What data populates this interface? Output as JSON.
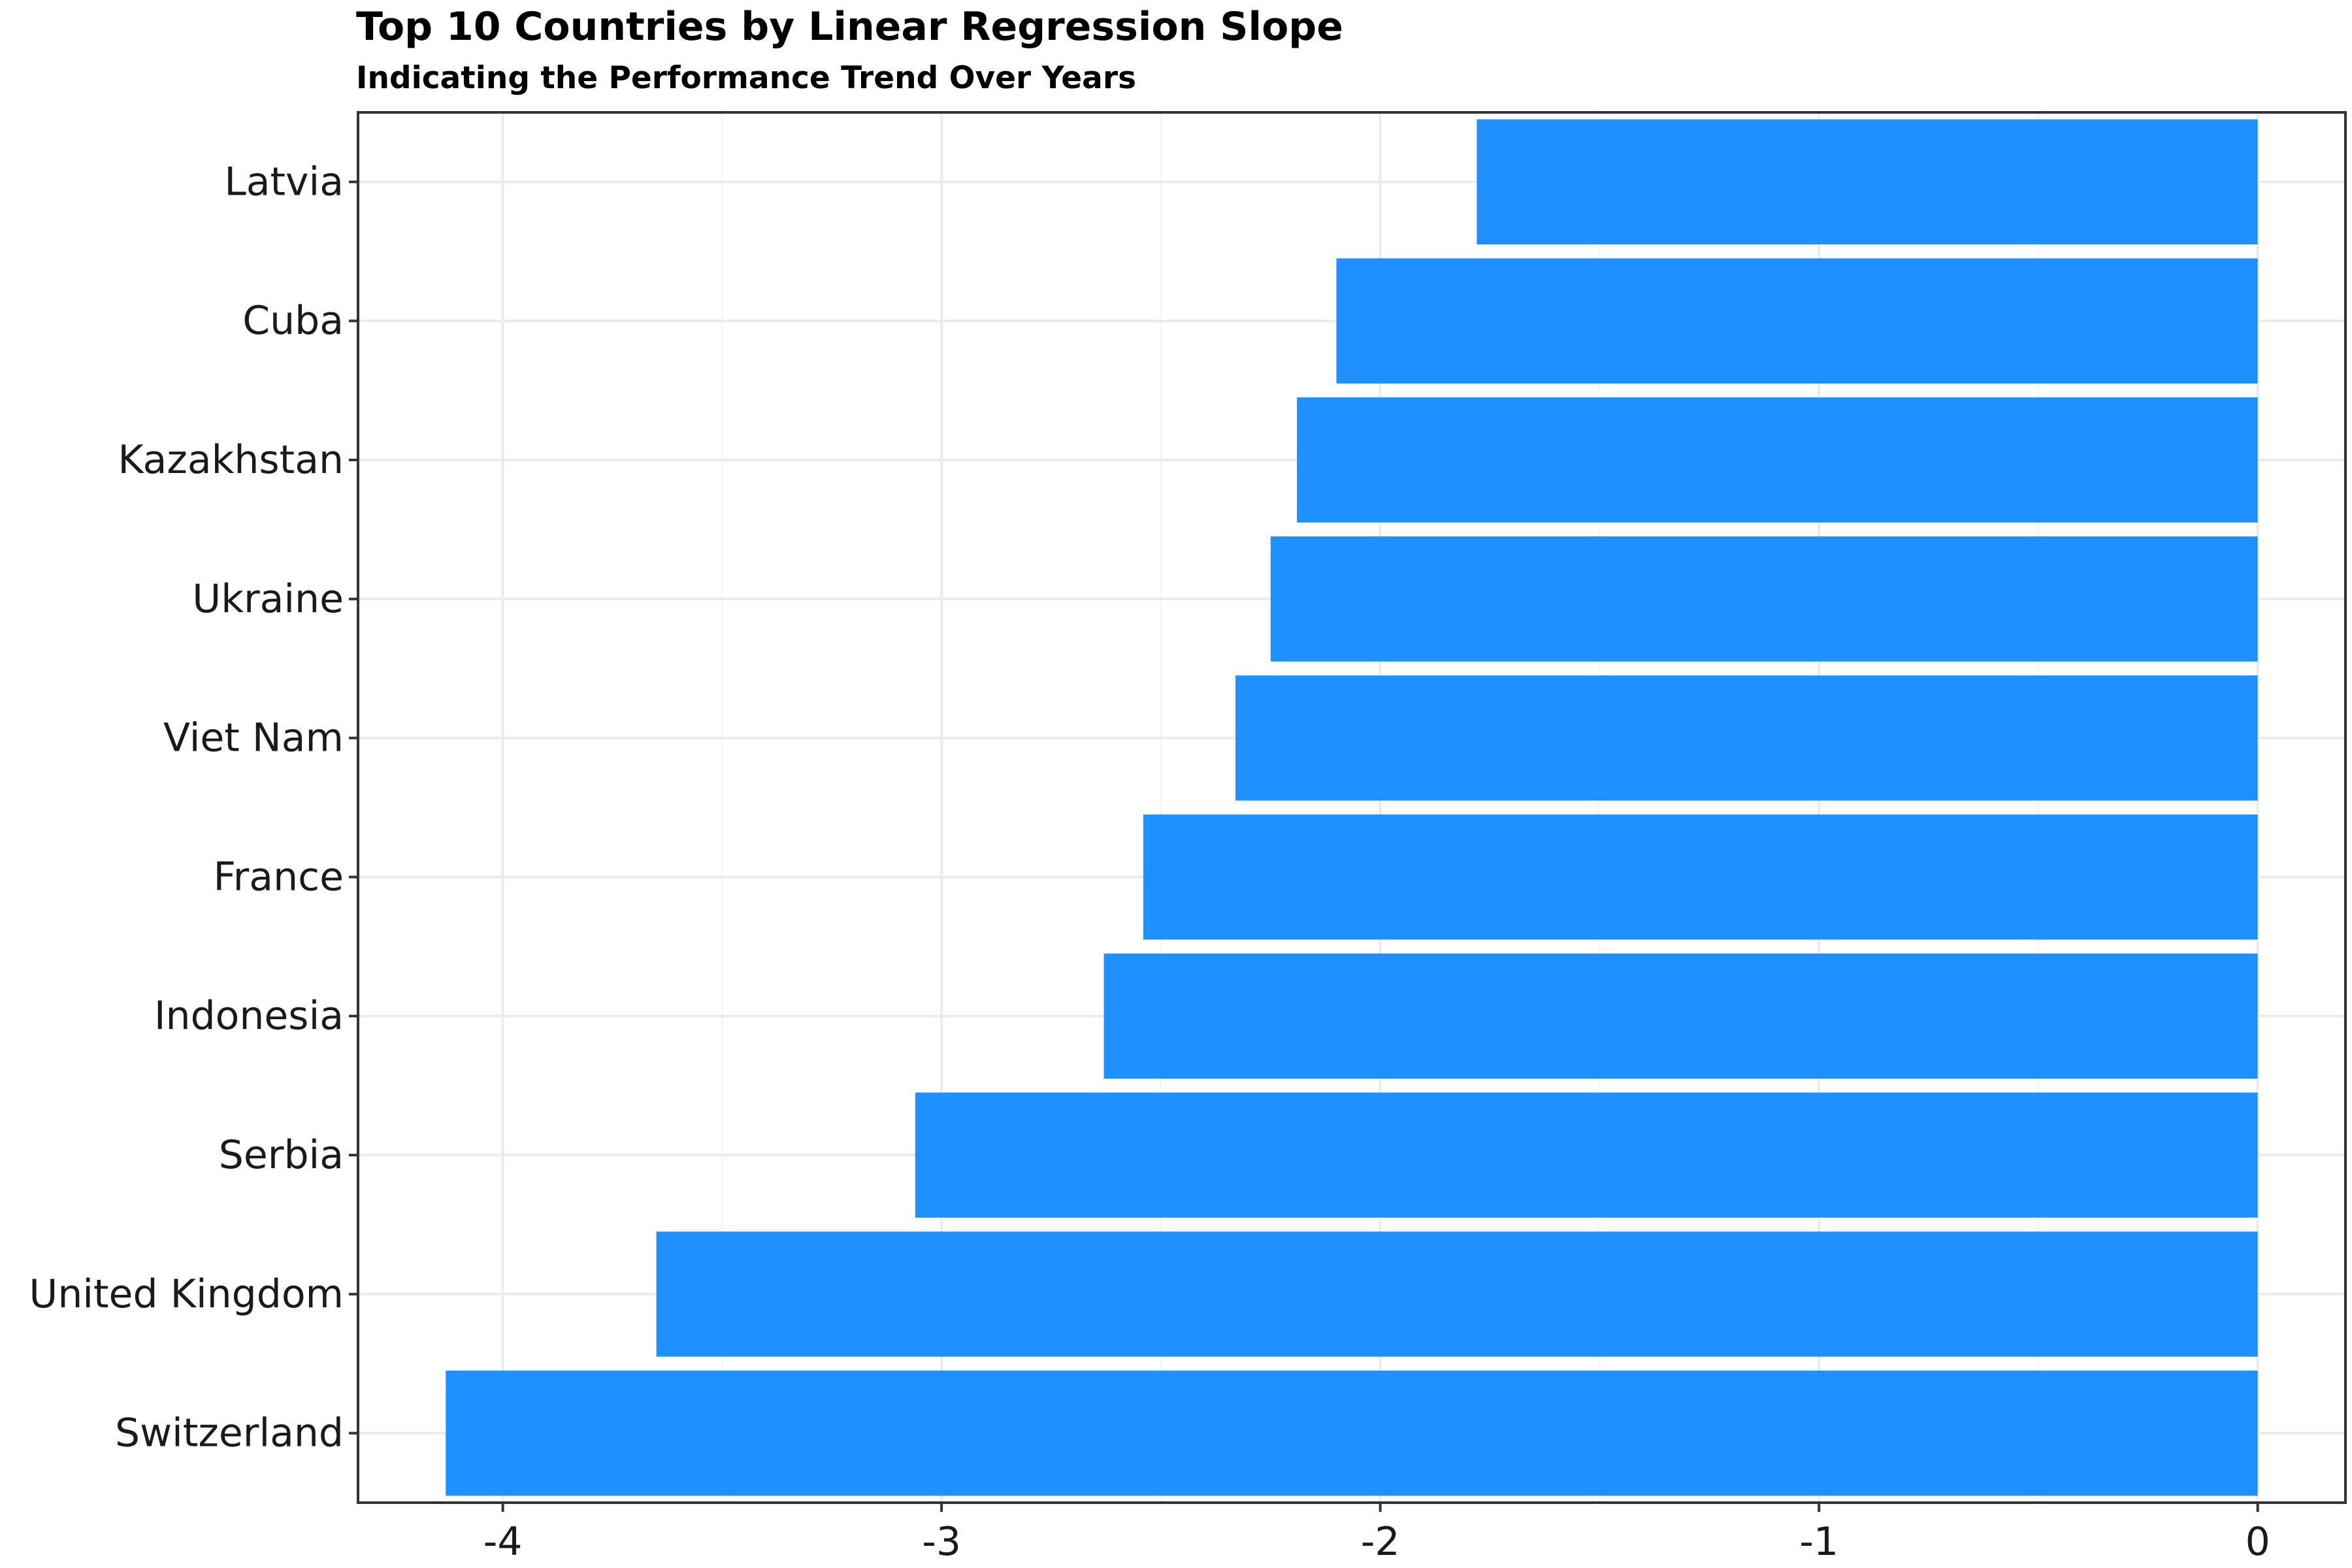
{
  "chart_data": {
    "type": "bar",
    "orientation": "horizontal",
    "title": "Top 10 Countries by Linear Regression Slope",
    "subtitle": "Indicating the Performance Trend Over Years",
    "xlabel": "",
    "ylabel": "",
    "categories": [
      "Latvia",
      "Cuba",
      "Kazakhstan",
      "Ukraine",
      "Viet Nam",
      "France",
      "Indonesia",
      "Serbia",
      "United Kingdom",
      "Switzerland"
    ],
    "values": [
      -1.78,
      -2.1,
      -2.19,
      -2.25,
      -2.33,
      -2.54,
      -2.63,
      -3.06,
      -3.65,
      -4.13
    ],
    "xlim": [
      -4.33,
      0.2
    ],
    "xticks": [
      -4,
      -3,
      -2,
      -1,
      0
    ],
    "xtick_labels": [
      "-4",
      "-3",
      "-2",
      "-1",
      "0"
    ],
    "bar_color": "#1e90ff",
    "grid": true,
    "legend": "none"
  }
}
